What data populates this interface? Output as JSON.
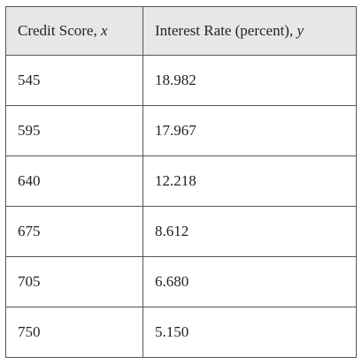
{
  "table": {
    "header": [
      {
        "label": "Credit Score,",
        "variable": "x"
      },
      {
        "label": "Interest Rate (percent),",
        "variable": "y"
      }
    ],
    "rows": [
      [
        "545",
        "18.982"
      ],
      [
        "595",
        "17.967"
      ],
      [
        "640",
        "12.218"
      ],
      [
        "675",
        "8.612"
      ],
      [
        "705",
        "6.680"
      ],
      [
        "750",
        "5.150"
      ]
    ]
  }
}
